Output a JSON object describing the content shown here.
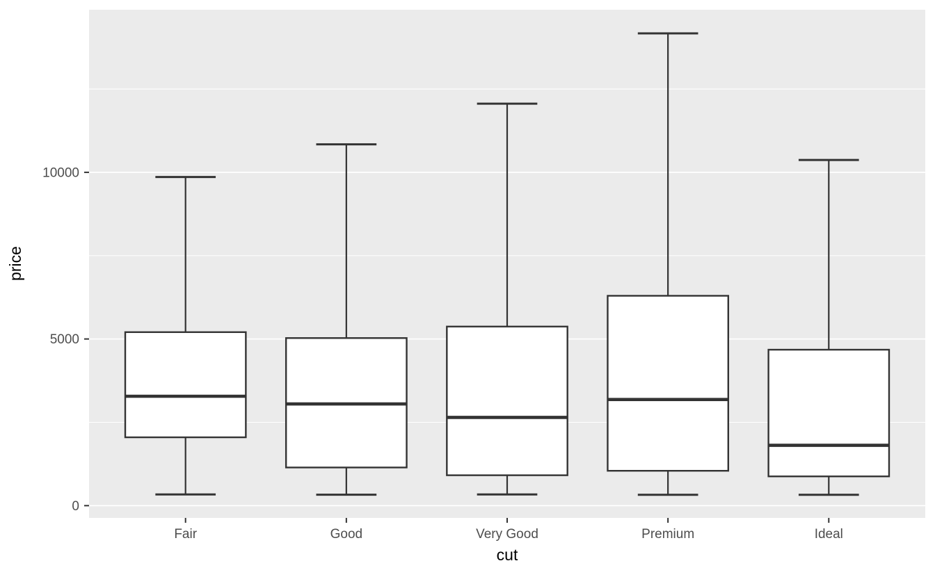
{
  "chart_data": {
    "type": "boxplot",
    "title": "",
    "xlabel": "cut",
    "ylabel": "price",
    "categories": [
      "Fair",
      "Good",
      "Very Good",
      "Premium",
      "Ideal"
    ],
    "series": [
      {
        "category": "Fair",
        "whisker_low": 337,
        "q1": 2050.25,
        "median": 3282,
        "q3": 5205.5,
        "whisker_high": 9860
      },
      {
        "category": "Good",
        "whisker_low": 327,
        "q1": 1145,
        "median": 3050.5,
        "q3": 5028,
        "whisker_high": 10840
      },
      {
        "category": "Very Good",
        "whisker_low": 336,
        "q1": 912,
        "median": 2648,
        "q3": 5372.75,
        "whisker_high": 12060
      },
      {
        "category": "Premium",
        "whisker_low": 326,
        "q1": 1046,
        "median": 3185,
        "q3": 6296,
        "whisker_high": 14170
      },
      {
        "category": "Ideal",
        "whisker_low": 326,
        "q1": 878,
        "median": 1810,
        "q3": 4678.5,
        "whisker_high": 10370
      }
    ],
    "y_ticks": [
      0,
      5000,
      10000
    ],
    "y_tick_labels": [
      "0",
      "5000",
      "10000"
    ],
    "y_minor_ticks": [
      2500,
      7500,
      12500
    ],
    "ylim": [
      -368,
      14878
    ],
    "grid": true,
    "legend": "none",
    "outliers_shown": false
  },
  "colors": {
    "page_bg": "#FFFFFF",
    "panel_bg": "#EBEBEB",
    "grid_major": "#FFFFFF",
    "grid_minor": "#FFFFFF",
    "box_stroke": "#333333",
    "box_fill": "#FFFFFF",
    "median_stroke": "#333333",
    "whisker_stroke": "#333333",
    "tick_mark": "#333333",
    "axis_text": "#4D4D4D",
    "axis_title": "#000000"
  }
}
